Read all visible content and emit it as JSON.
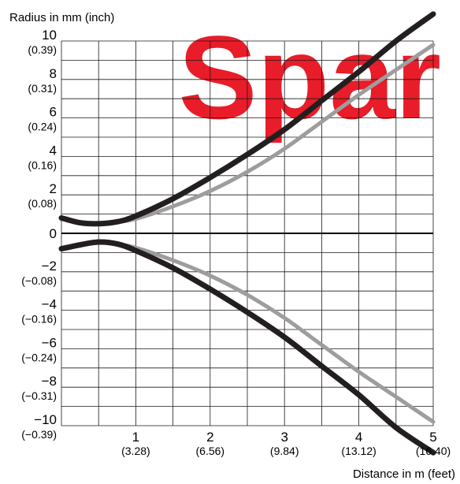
{
  "watermark": {
    "text": "Spar",
    "color": "#e8101e"
  },
  "chart_data": {
    "type": "line",
    "title": "",
    "ylabel": "Radius in mm (inch)",
    "xlabel": "Distance in m (feet)",
    "xlim": [
      0,
      5
    ],
    "ylim": [
      -10,
      10
    ],
    "grid": true,
    "x_ticks": [
      {
        "value": 1,
        "label": "1",
        "sublabel": "(3.28)"
      },
      {
        "value": 2,
        "label": "2",
        "sublabel": "(6.56)"
      },
      {
        "value": 3,
        "label": "3",
        "sublabel": "(9.84)"
      },
      {
        "value": 4,
        "label": "4",
        "sublabel": "(13.12)"
      },
      {
        "value": 5,
        "label": "5",
        "sublabel": "(16.40)"
      }
    ],
    "y_ticks": [
      {
        "value": 10,
        "label": "10",
        "sublabel": "(0.39)"
      },
      {
        "value": 8,
        "label": "8",
        "sublabel": "(0.31)"
      },
      {
        "value": 6,
        "label": "6",
        "sublabel": "(0.24)"
      },
      {
        "value": 4,
        "label": "4",
        "sublabel": "(0.16)"
      },
      {
        "value": 2,
        "label": "2",
        "sublabel": "(0.08)"
      },
      {
        "value": 0,
        "label": "0",
        "sublabel": ""
      },
      {
        "value": -2,
        "label": "−2",
        "sublabel": "(−0.08)"
      },
      {
        "value": -4,
        "label": "−4",
        "sublabel": "(−0.16)"
      },
      {
        "value": -6,
        "label": "−6",
        "sublabel": "(−0.24)"
      },
      {
        "value": -8,
        "label": "−8",
        "sublabel": "(−0.31)"
      },
      {
        "value": -10,
        "label": "−10",
        "sublabel": "(−0.39)"
      }
    ],
    "series": [
      {
        "color": "#231f20",
        "x": [
          0,
          0.25,
          0.5,
          0.75,
          1,
          1.5,
          2,
          2.5,
          3,
          3.5,
          4,
          4.5,
          5
        ],
        "y": [
          0.8,
          0.55,
          0.5,
          0.6,
          0.9,
          1.8,
          2.9,
          4.1,
          5.4,
          6.9,
          8.4,
          10.0,
          11.4
        ]
      },
      {
        "color": "#9d9d9d",
        "x": [
          0,
          0.25,
          0.5,
          0.75,
          1,
          1.5,
          2,
          2.5,
          3,
          3.5,
          4,
          4.5,
          5
        ],
        "y": [
          0.8,
          0.55,
          0.5,
          0.6,
          0.75,
          1.4,
          2.2,
          3.2,
          4.4,
          5.8,
          7.2,
          8.5,
          9.8
        ]
      },
      {
        "color": "#9d9d9d",
        "x": [
          0,
          0.25,
          0.5,
          0.75,
          1,
          1.5,
          2,
          2.5,
          3,
          3.5,
          4,
          4.5,
          5
        ],
        "y": [
          -0.8,
          -0.55,
          -0.45,
          -0.55,
          -0.75,
          -1.4,
          -2.2,
          -3.2,
          -4.4,
          -5.8,
          -7.2,
          -8.5,
          -9.8
        ]
      },
      {
        "color": "#231f20",
        "x": [
          0,
          0.25,
          0.5,
          0.75,
          1,
          1.5,
          2,
          2.5,
          3,
          3.5,
          4,
          4.5,
          5
        ],
        "y": [
          -0.8,
          -0.6,
          -0.45,
          -0.55,
          -0.9,
          -1.8,
          -2.9,
          -4.1,
          -5.4,
          -6.9,
          -8.4,
          -10.1,
          -11.4
        ]
      }
    ]
  }
}
